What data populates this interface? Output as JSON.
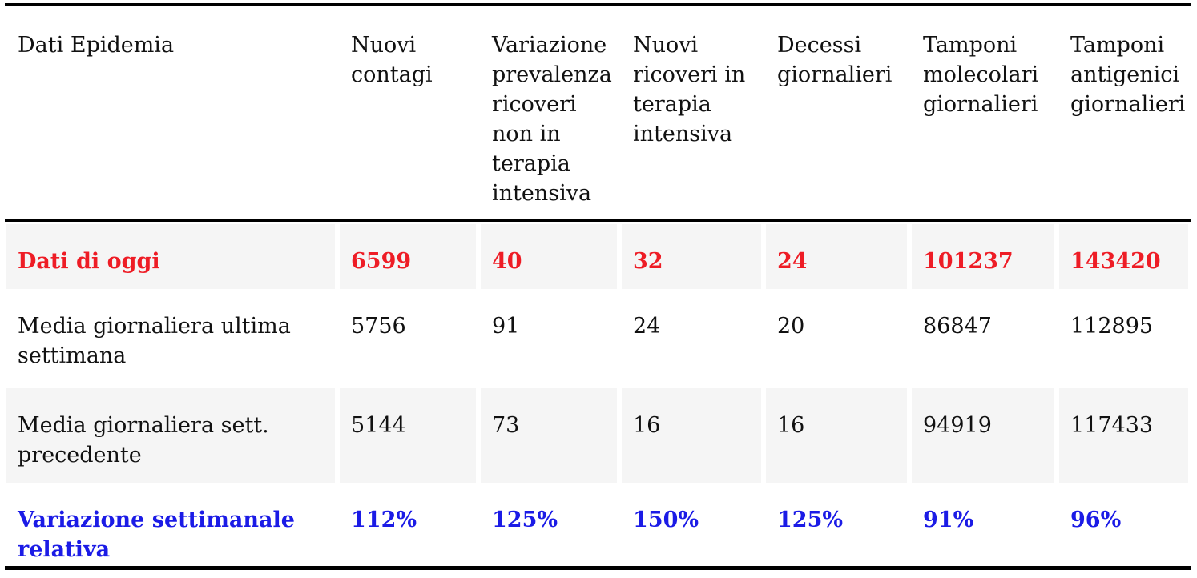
{
  "chart_data": {
    "type": "table",
    "title": "Dati Epidemia",
    "columns": [
      "Dati Epidemia",
      "Nuovi contagi",
      "Variazione prevalenza ricoveri non in terapia intensiva",
      "Nuovi ricoveri in terapia intensiva",
      "Decessi giornalieri",
      "Tamponi molecolari giornalieri",
      "Tamponi antigenici giornalieri"
    ],
    "rows": [
      {
        "label": "Dati di oggi",
        "values": [
          "6599",
          "40",
          "32",
          "24",
          "101237",
          "143420"
        ],
        "style": "red-bold"
      },
      {
        "label": "Media giornaliera ultima settimana",
        "values": [
          "5756",
          "91",
          "24",
          "20",
          "86847",
          "112895"
        ],
        "style": "plain"
      },
      {
        "label": "Media giornaliera sett. precedente",
        "values": [
          "5144",
          "73",
          "16",
          "16",
          "94919",
          "117433"
        ],
        "style": "plain"
      },
      {
        "label": "Variazione settimanale relativa",
        "values": [
          "112%",
          "125%",
          "150%",
          "125%",
          "91%",
          "96%"
        ],
        "style": "blue-bold"
      }
    ],
    "layout": {
      "striped_row_indices": [
        0,
        2
      ],
      "rules": [
        "top",
        "below-header",
        "bottom"
      ],
      "alignment": "left"
    }
  },
  "colors": {
    "today_text": "#ee1c25",
    "variation_text": "#1b1be6",
    "stripe_bg": "#f5f5f5",
    "rule": "#000000",
    "body_text": "#111111",
    "background": "#ffffff"
  }
}
